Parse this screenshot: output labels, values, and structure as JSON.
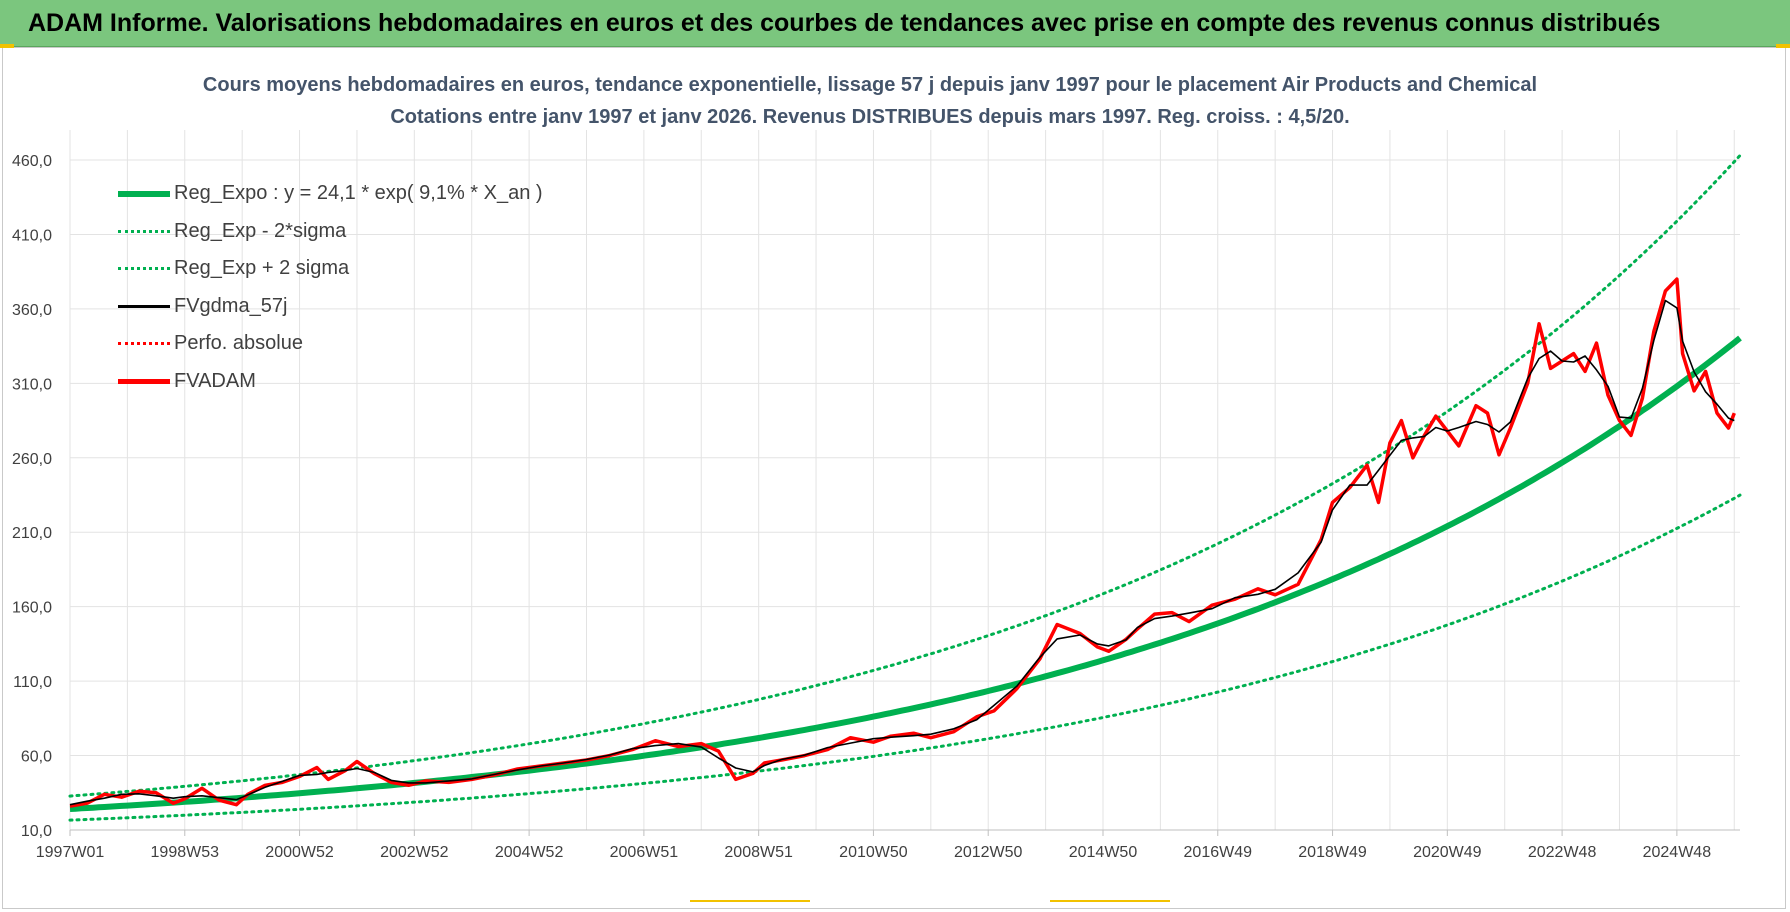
{
  "header": {
    "title": "ADAM Informe. Valorisations hebdomadaires en euros et des courbes de tendances avec prise en compte des revenus connus distribués"
  },
  "colors": {
    "banner": "#7bc67e",
    "regression": "#00b050",
    "smoothed": "#000000",
    "price": "#ff0000",
    "grid": "#e3e3e3",
    "axis_text": "#404040",
    "title_text": "#44546a"
  },
  "chart_data": {
    "type": "line",
    "title": "Cours moyens hebdomadaires en euros, tendance exponentielle, lissage 57 j depuis janv 1997  pour le placement Air Products and Chemical",
    "subtitle": "Cotations entre janv 1997 et janv 2026. Revenus DISTRIBUES depuis mars 1997.  Reg. croiss. : 4,5/20.",
    "xlabel": "",
    "ylabel": "",
    "ylim": [
      10,
      460
    ],
    "y_tick_labels": [
      "10,0",
      "60,0",
      "110,0",
      "160,0",
      "210,0",
      "260,0",
      "310,0",
      "360,0",
      "410,0",
      "460,0"
    ],
    "x_tick_labels": [
      "1997W01",
      "1998W53",
      "2000W52",
      "2002W52",
      "2004W52",
      "2006W51",
      "2008W51",
      "2010W50",
      "2012W50",
      "2014W50",
      "2016W49",
      "2018W49",
      "2020W49",
      "2022W48",
      "2024W48"
    ],
    "x_tick_years": [
      1997.0,
      1999.0,
      2001.0,
      2003.0,
      2005.0,
      2007.0,
      2009.0,
      2011.0,
      2013.0,
      2015.0,
      2017.0,
      2019.0,
      2021.0,
      2023.0,
      2025.0
    ],
    "x_range": [
      1997.0,
      2026.1
    ],
    "grid": true,
    "legend_placement": "top-left",
    "regression": {
      "a": 24.1,
      "rate": 0.091,
      "low_factor": 0.69,
      "high_factor": 1.36
    },
    "series": [
      {
        "name": "Reg_Expo : y = 24,1 * exp( 9,1% *  X_an )",
        "style": "solid-thick",
        "color": "#00b050"
      },
      {
        "name": "Reg_Exp - 2*sigma",
        "style": "dotted",
        "color": "#00b050"
      },
      {
        "name": "Reg_Exp + 2 sigma",
        "style": "dotted",
        "color": "#00b050"
      },
      {
        "name": "FVgdma_57j",
        "style": "solid",
        "color": "#000000"
      },
      {
        "name": "Perfo. absolue",
        "style": "dotted",
        "color": "#ff0000"
      },
      {
        "name": "FVADAM",
        "style": "solid-thick",
        "color": "#ff0000",
        "x": [
          1997.0,
          1997.3,
          1997.6,
          1997.9,
          1998.2,
          1998.5,
          1998.8,
          1999.0,
          1999.3,
          1999.6,
          1999.9,
          2000.1,
          2000.4,
          2000.7,
          2001.0,
          2001.3,
          2001.5,
          2001.8,
          2002.0,
          2002.3,
          2002.6,
          2002.9,
          2003.2,
          2003.6,
          2004.0,
          2004.4,
          2004.8,
          2005.2,
          2005.6,
          2006.0,
          2006.4,
          2006.8,
          2007.2,
          2007.6,
          2008.0,
          2008.3,
          2008.6,
          2008.9,
          2009.1,
          2009.4,
          2009.8,
          2010.2,
          2010.6,
          2011.0,
          2011.3,
          2011.7,
          2012.0,
          2012.4,
          2012.8,
          2013.1,
          2013.5,
          2013.9,
          2014.2,
          2014.6,
          2014.9,
          2015.1,
          2015.4,
          2015.6,
          2015.9,
          2016.2,
          2016.5,
          2016.9,
          2017.3,
          2017.7,
          2018.0,
          2018.4,
          2018.8,
          2019.0,
          2019.3,
          2019.6,
          2019.8,
          2020.0,
          2020.2,
          2020.4,
          2020.6,
          2020.8,
          2021.0,
          2021.2,
          2021.5,
          2021.7,
          2021.9,
          2022.1,
          2022.4,
          2022.6,
          2022.8,
          2023.0,
          2023.2,
          2023.4,
          2023.6,
          2023.8,
          2024.0,
          2024.2,
          2024.4,
          2024.6,
          2024.8,
          2025.0,
          2025.1,
          2025.3,
          2025.5,
          2025.7,
          2025.9,
          2026.0
        ],
        "values": [
          26,
          28,
          34,
          32,
          36,
          35,
          28,
          31,
          38,
          30,
          27,
          34,
          40,
          42,
          46,
          52,
          44,
          50,
          56,
          48,
          42,
          40,
          43,
          42,
          44,
          47,
          51,
          53,
          55,
          57,
          60,
          64,
          70,
          66,
          68,
          63,
          44,
          48,
          55,
          57,
          60,
          64,
          72,
          69,
          73,
          75,
          72,
          76,
          86,
          90,
          105,
          125,
          148,
          142,
          133,
          130,
          138,
          145,
          155,
          156,
          150,
          161,
          165,
          172,
          168,
          175,
          205,
          230,
          240,
          255,
          230,
          270,
          285,
          260,
          275,
          288,
          278,
          268,
          295,
          290,
          262,
          280,
          310,
          350,
          320,
          325,
          330,
          318,
          337,
          302,
          285,
          275,
          300,
          345,
          372,
          380,
          330,
          305,
          318,
          290,
          280,
          290
        ]
      }
    ]
  }
}
